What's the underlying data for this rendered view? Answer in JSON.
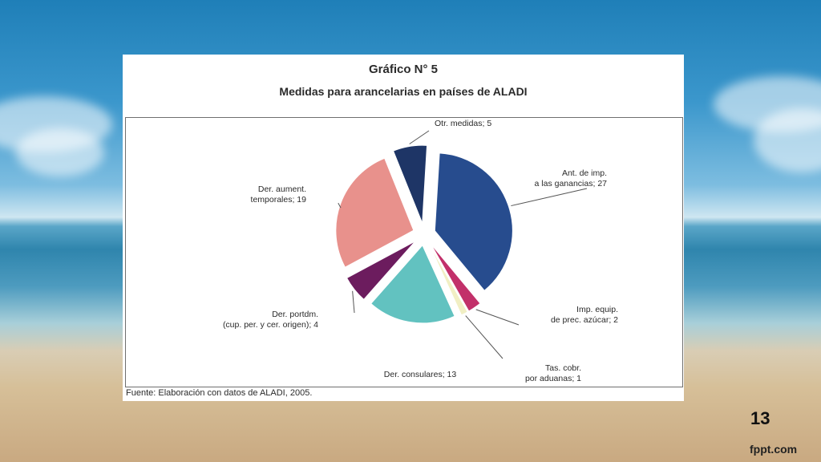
{
  "slide": {
    "page_number": "13",
    "brand": "fppt.com"
  },
  "chart_data": {
    "type": "pie",
    "title": "Gráfico N° 5",
    "subtitle": "Medidas para arancelarias en países de ALADI",
    "source": "Fuente: Elaboración con datos de ALADI, 2005.",
    "slices": [
      {
        "label": [
          "Ant. de imp.",
          "a las ganancias; 27"
        ],
        "value": 27,
        "color": "#274c8e"
      },
      {
        "label": [
          "Imp. equip.",
          "de prec. azúcar; 2"
        ],
        "value": 2,
        "color": "#c2306a"
      },
      {
        "label": [
          "Tas. cobr.",
          "por aduanas; 1"
        ],
        "value": 1,
        "color": "#f1efc4"
      },
      {
        "label": [
          "Der. consulares; 13"
        ],
        "value": 13,
        "color": "#62c2c0"
      },
      {
        "label": [
          "Der. portdm.",
          "(cup. per. y cer. origen); 4"
        ],
        "value": 4,
        "color": "#6c1c5e"
      },
      {
        "label": [
          "Der. aument.",
          "temporales; 19"
        ],
        "value": 19,
        "color": "#e8918c"
      },
      {
        "label": [
          "Otr. medidas; 5"
        ],
        "value": 5,
        "color": "#1e3566"
      }
    ]
  }
}
